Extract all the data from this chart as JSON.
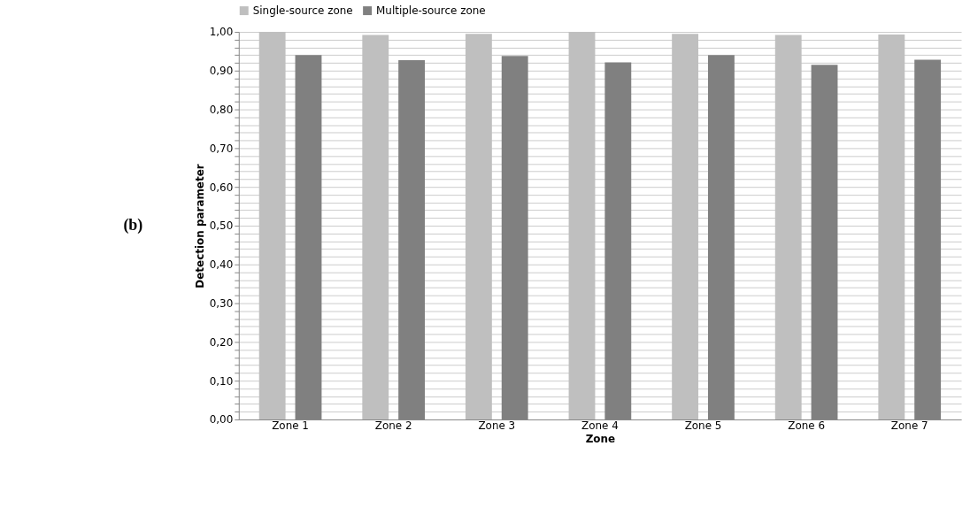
{
  "chart_data": {
    "type": "bar",
    "xlabel": "Zone",
    "ylabel": "Detection parameter",
    "annotations": [
      "(b)"
    ],
    "categories": [
      "Zone 1",
      "Zone 2",
      "Zone 3",
      "Zone 4",
      "Zone 5",
      "Zone 6",
      "Zone 7"
    ],
    "series": [
      {
        "name": "Single-source zone",
        "color": "#bfbfbf",
        "values": [
          1.0,
          0.992,
          0.995,
          1.0,
          0.995,
          0.992,
          0.993
        ]
      },
      {
        "name": "Multiple-source zone",
        "color": "#808080",
        "values": [
          0.94,
          0.927,
          0.938,
          0.921,
          0.94,
          0.915,
          0.928
        ]
      }
    ],
    "ylim": [
      0,
      1
    ],
    "yticks": [
      {
        "value": 0,
        "label": "0,00"
      },
      {
        "value": 0.02,
        "label": null
      },
      {
        "value": 0.04,
        "label": null
      },
      {
        "value": 0.06,
        "label": null
      },
      {
        "value": 0.08,
        "label": null
      },
      {
        "value": 0.1,
        "label": "0,10"
      },
      {
        "value": 0.12,
        "label": null
      },
      {
        "value": 0.14,
        "label": null
      },
      {
        "value": 0.16,
        "label": null
      },
      {
        "value": 0.18,
        "label": null
      },
      {
        "value": 0.2,
        "label": "0,20"
      },
      {
        "value": 0.22,
        "label": null
      },
      {
        "value": 0.24,
        "label": null
      },
      {
        "value": 0.26,
        "label": null
      },
      {
        "value": 0.28,
        "label": null
      },
      {
        "value": 0.3,
        "label": "0,30"
      },
      {
        "value": 0.32,
        "label": null
      },
      {
        "value": 0.34,
        "label": null
      },
      {
        "value": 0.36,
        "label": null
      },
      {
        "value": 0.38,
        "label": null
      },
      {
        "value": 0.4,
        "label": "0,40"
      },
      {
        "value": 0.42,
        "label": null
      },
      {
        "value": 0.44,
        "label": null
      },
      {
        "value": 0.46,
        "label": null
      },
      {
        "value": 0.48,
        "label": null
      },
      {
        "value": 0.5,
        "label": "0,50"
      },
      {
        "value": 0.52,
        "label": null
      },
      {
        "value": 0.54,
        "label": null
      },
      {
        "value": 0.56,
        "label": null
      },
      {
        "value": 0.58,
        "label": null
      },
      {
        "value": 0.6,
        "label": "0,60"
      },
      {
        "value": 0.62,
        "label": null
      },
      {
        "value": 0.64,
        "label": null
      },
      {
        "value": 0.66,
        "label": null
      },
      {
        "value": 0.68,
        "label": null
      },
      {
        "value": 0.7,
        "label": "0,70"
      },
      {
        "value": 0.72,
        "label": null
      },
      {
        "value": 0.74,
        "label": null
      },
      {
        "value": 0.76,
        "label": null
      },
      {
        "value": 0.78,
        "label": null
      },
      {
        "value": 0.8,
        "label": "0,80"
      },
      {
        "value": 0.82,
        "label": null
      },
      {
        "value": 0.84,
        "label": null
      },
      {
        "value": 0.86,
        "label": null
      },
      {
        "value": 0.88,
        "label": null
      },
      {
        "value": 0.9,
        "label": "0,90"
      },
      {
        "value": 0.92,
        "label": null
      },
      {
        "value": 0.94,
        "label": null
      },
      {
        "value": 0.96,
        "label": null
      },
      {
        "value": 0.98,
        "label": null
      },
      {
        "value": 1,
        "label": "1,00"
      }
    ],
    "grid": "y",
    "legend": "top"
  }
}
